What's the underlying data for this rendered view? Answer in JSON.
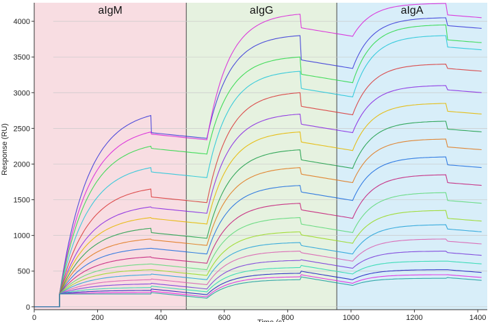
{
  "chart_data": {
    "type": "line",
    "title": "",
    "xlabel": "Time (s)",
    "ylabel": "Response (RU)",
    "xlim": [
      0,
      1430
    ],
    "ylim": [
      -40,
      4260
    ],
    "xticks": [
      0,
      200,
      400,
      600,
      800,
      1000,
      1200,
      1400
    ],
    "yticks": [
      0,
      500,
      1000,
      1500,
      2000,
      2500,
      3000,
      3500,
      4000
    ],
    "grid": true,
    "legend": "none",
    "regions": [
      {
        "label": "aIgM",
        "x_start": 0,
        "x_end": 480,
        "color": "#f8dde2"
      },
      {
        "label": "aIgG",
        "x_start": 480,
        "x_end": 955,
        "color": "#e6f2e0"
      },
      {
        "label": "aIgA",
        "x_start": 955,
        "x_end": 1430,
        "color": "#d8eef9"
      }
    ],
    "phases": {
      "baseline_until": 80,
      "aIgM_association": [
        80,
        368
      ],
      "aIgM_dissociation": [
        368,
        545
      ],
      "aIgG_association": [
        545,
        840
      ],
      "aIgG_dissociation": [
        840,
        1005
      ],
      "aIgA_association": [
        1005,
        1302
      ],
      "aIgA_dissociation": [
        1302,
        1415
      ]
    },
    "series": [
      {
        "color": "#3b3bd9",
        "values": {
          "igm_peak": 2680,
          "igm_end": 2400,
          "igg_peak": 3800,
          "igg_end": 3400,
          "iga_peak": 4050,
          "iga_end": 3900
        }
      },
      {
        "color": "#d926d9",
        "values": {
          "igm_peak": 2450,
          "igm_end": 2380,
          "igg_peak": 4100,
          "igg_end": 3850,
          "iga_peak": 4250,
          "iga_end": 4050
        }
      },
      {
        "color": "#2fd94a",
        "values": {
          "igm_peak": 2250,
          "igm_end": 2180,
          "igg_peak": 3500,
          "igg_end": 3200,
          "iga_peak": 3950,
          "iga_end": 3700
        }
      },
      {
        "color": "#26c7d9",
        "values": {
          "igm_peak": 1950,
          "igm_end": 1850,
          "igg_peak": 3300,
          "igg_end": 3000,
          "iga_peak": 3800,
          "iga_end": 3600
        }
      },
      {
        "color": "#d93b3b",
        "values": {
          "igm_peak": 1650,
          "igm_end": 1500,
          "igg_peak": 3000,
          "igg_end": 2750,
          "iga_peak": 3400,
          "iga_end": 3300
        }
      },
      {
        "color": "#8a2be2",
        "values": {
          "igm_peak": 1400,
          "igm_end": 1350,
          "igg_peak": 2700,
          "igg_end": 2500,
          "iga_peak": 3100,
          "iga_end": 3000
        }
      },
      {
        "color": "#e6b800",
        "values": {
          "igm_peak": 1250,
          "igm_end": 1200,
          "igg_peak": 2450,
          "igg_end": 2250,
          "iga_peak": 2850,
          "iga_end": 2700
        }
      },
      {
        "color": "#1f9e4a",
        "values": {
          "igm_peak": 1100,
          "igm_end": 1000,
          "igg_peak": 2200,
          "igg_end": 2000,
          "iga_peak": 2600,
          "iga_end": 2450
        }
      },
      {
        "color": "#e07a1f",
        "values": {
          "igm_peak": 950,
          "igm_end": 900,
          "igg_peak": 1950,
          "igg_end": 1800,
          "iga_peak": 2350,
          "iga_end": 2200
        }
      },
      {
        "color": "#1f6fe0",
        "values": {
          "igm_peak": 820,
          "igm_end": 780,
          "igg_peak": 1700,
          "igg_end": 1550,
          "iga_peak": 2100,
          "iga_end": 1950
        }
      },
      {
        "color": "#c41f7a",
        "values": {
          "igm_peak": 700,
          "igm_end": 650,
          "igg_peak": 1450,
          "igg_end": 1300,
          "iga_peak": 1850,
          "iga_end": 1700
        }
      },
      {
        "color": "#5fd97a",
        "values": {
          "igm_peak": 600,
          "igm_end": 560,
          "igg_peak": 1250,
          "igg_end": 1100,
          "iga_peak": 1600,
          "iga_end": 1450
        }
      },
      {
        "color": "#9ad926",
        "values": {
          "igm_peak": 520,
          "igm_end": 480,
          "igg_peak": 1050,
          "igg_end": 950,
          "iga_peak": 1350,
          "iga_end": 1200
        }
      },
      {
        "color": "#26a3d9",
        "values": {
          "igm_peak": 450,
          "igm_end": 420,
          "igg_peak": 900,
          "igg_end": 800,
          "iga_peak": 1150,
          "iga_end": 1050
        }
      },
      {
        "color": "#d95fb0",
        "values": {
          "igm_peak": 380,
          "igm_end": 350,
          "igg_peak": 780,
          "igg_end": 700,
          "iga_peak": 950,
          "iga_end": 880
        }
      },
      {
        "color": "#7a3bd9",
        "values": {
          "igm_peak": 320,
          "igm_end": 290,
          "igg_peak": 650,
          "igg_end": 600,
          "iga_peak": 780,
          "iga_end": 720
        }
      },
      {
        "color": "#2bd9b0",
        "values": {
          "igm_peak": 270,
          "igm_end": 250,
          "igg_peak": 550,
          "igg_end": 520,
          "iga_peak": 640,
          "iga_end": 600
        }
      },
      {
        "color": "#2020c0",
        "values": {
          "igm_peak": 230,
          "igm_end": 210,
          "igg_peak": 470,
          "igg_end": 440,
          "iga_peak": 520,
          "iga_end": 480
        }
      },
      {
        "color": "#e026e0",
        "values": {
          "igm_peak": 200,
          "igm_end": 180,
          "igg_peak": 420,
          "igg_end": 390,
          "iga_peak": 450,
          "iga_end": 410
        }
      },
      {
        "color": "#1fa0a0",
        "values": {
          "igm_peak": 180,
          "igm_end": 160,
          "igg_peak": 380,
          "igg_end": 360,
          "iga_peak": 400,
          "iga_end": 370
        }
      }
    ]
  }
}
